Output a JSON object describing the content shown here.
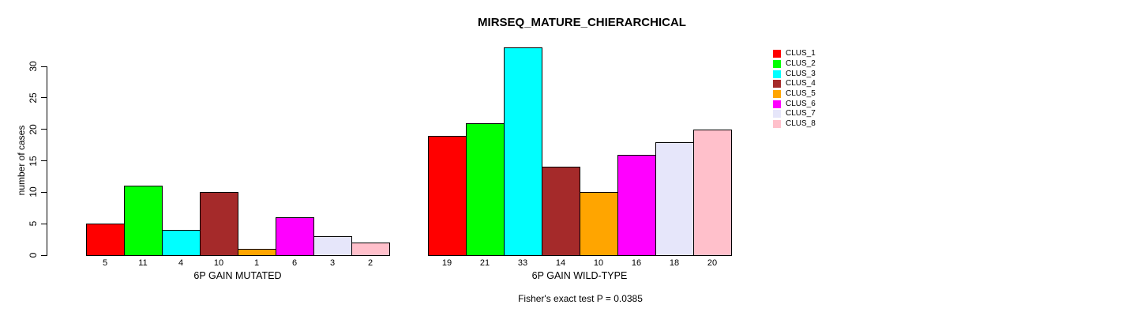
{
  "title": "MIRSEQ_MATURE_CHIERARCHICAL",
  "footer": "Fisher's exact test P = 0.0385",
  "y_axis": {
    "label": "number of cases",
    "ticks": [
      0,
      5,
      10,
      15,
      20,
      25,
      30
    ]
  },
  "legend": {
    "items": [
      {
        "label": "CLUS_1",
        "color": "#FF0000"
      },
      {
        "label": "CLUS_2",
        "color": "#00FF00"
      },
      {
        "label": "CLUS_3",
        "color": "#00FFFF"
      },
      {
        "label": "CLUS_4",
        "color": "#A52A2A"
      },
      {
        "label": "CLUS_5",
        "color": "#FFA500"
      },
      {
        "label": "CLUS_6",
        "color": "#FF00FF"
      },
      {
        "label": "CLUS_7",
        "color": "#E6E6FA"
      },
      {
        "label": "CLUS_8",
        "color": "#FFC0CB"
      }
    ]
  },
  "chart_data": {
    "type": "bar",
    "title": "MIRSEQ_MATURE_CHIERARCHICAL",
    "xlabel": "",
    "ylabel": "number of cases",
    "ylim": [
      0,
      30
    ],
    "grid": false,
    "legend_position": "right",
    "categories": [
      "6P GAIN MUTATED",
      "6P GAIN WILD-TYPE"
    ],
    "series": [
      {
        "name": "CLUS_1",
        "color": "#FF0000",
        "values": [
          5,
          19
        ]
      },
      {
        "name": "CLUS_2",
        "color": "#00FF00",
        "values": [
          11,
          21
        ]
      },
      {
        "name": "CLUS_3",
        "color": "#00FFFF",
        "values": [
          4,
          33
        ]
      },
      {
        "name": "CLUS_4",
        "color": "#A52A2A",
        "values": [
          10,
          14
        ]
      },
      {
        "name": "CLUS_5",
        "color": "#FFA500",
        "values": [
          1,
          10
        ]
      },
      {
        "name": "CLUS_6",
        "color": "#FF00FF",
        "values": [
          6,
          16
        ]
      },
      {
        "name": "CLUS_7",
        "color": "#E6E6FA",
        "values": [
          3,
          18
        ]
      },
      {
        "name": "CLUS_8",
        "color": "#FFC0CB",
        "values": [
          2,
          20
        ]
      }
    ],
    "bar_value_labels_shown": true,
    "annotation": "Fisher's exact test P = 0.0385"
  }
}
